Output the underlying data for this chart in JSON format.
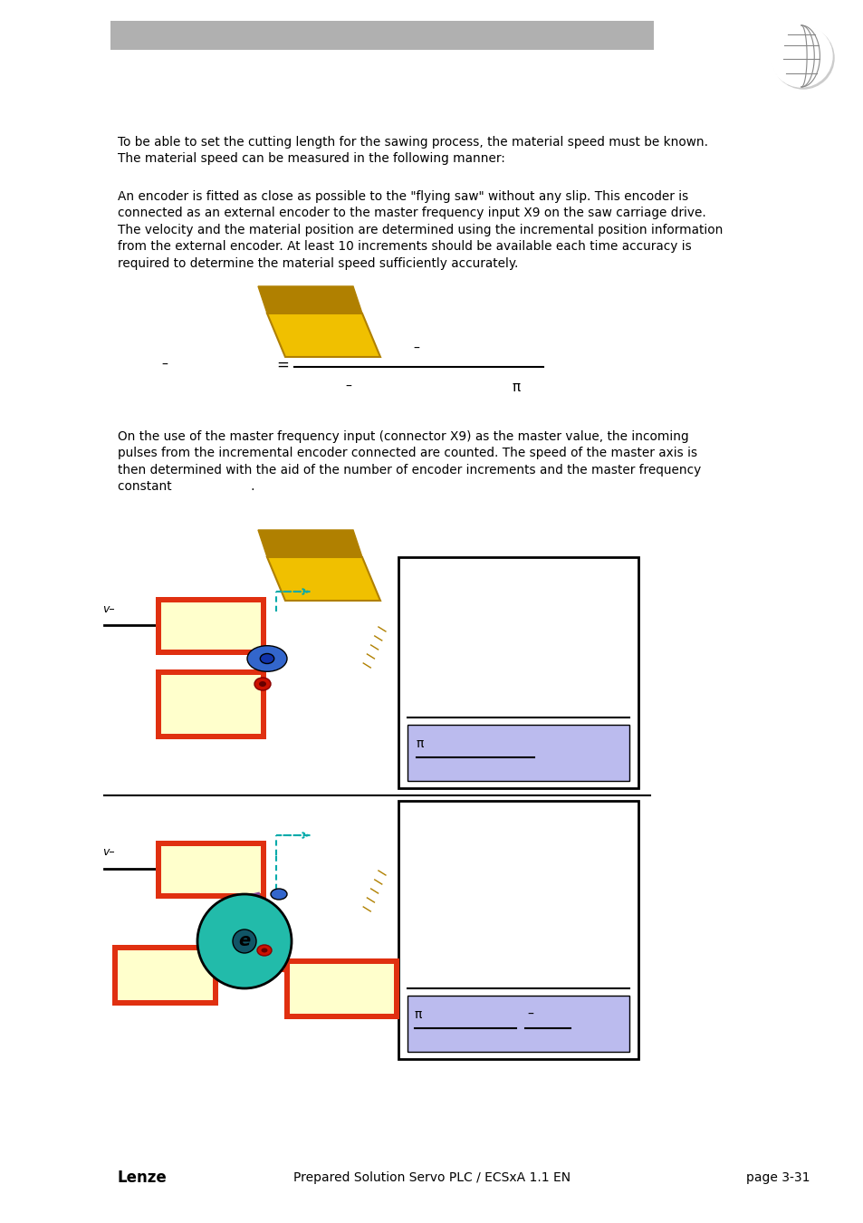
{
  "page_bg": "#ffffff",
  "header_bar_color": "#b0b0b0",
  "text_color": "#000000",
  "body_text_1": "To be able to set the cutting length for the sawing process, the material speed must be known.\nThe material speed can be measured in the following manner:",
  "body_text_2": "An encoder is fitted as close as possible to the \"flying saw\" without any slip. This encoder is\nconnected as an external encoder to the master frequency input X9 on the saw carriage drive.\nThe velocity and the material position are determined using the incremental position information\nfrom the external encoder. At least 10 increments should be available each time accuracy is\nrequired to determine the material speed sufficiently accurately.",
  "body_text_3": "On the use of the master frequency input (connector X9) as the master value, the incoming\npulses from the incremental encoder connected are counted. The speed of the master axis is\nthen determined with the aid of the number of encoder increments and the master frequency\nconstant                    .",
  "footer_left": "Lenze",
  "footer_center": "Prepared Solution Servo PLC / ECSxA 1.1 EN",
  "footer_right": "page 3-31",
  "yellow_fill": "#ffffcc",
  "red_border": "#e03010",
  "gold_fill": "#f0c000",
  "gold_dark": "#b08000",
  "blue_roller": "#3366cc",
  "red_dot": "#cc1100",
  "teal_arrow": "#00aaaa",
  "green_roller": "#22bbaa",
  "purple_belt": "#884499",
  "blue_box_fill": "#bbbbee",
  "black": "#000000"
}
